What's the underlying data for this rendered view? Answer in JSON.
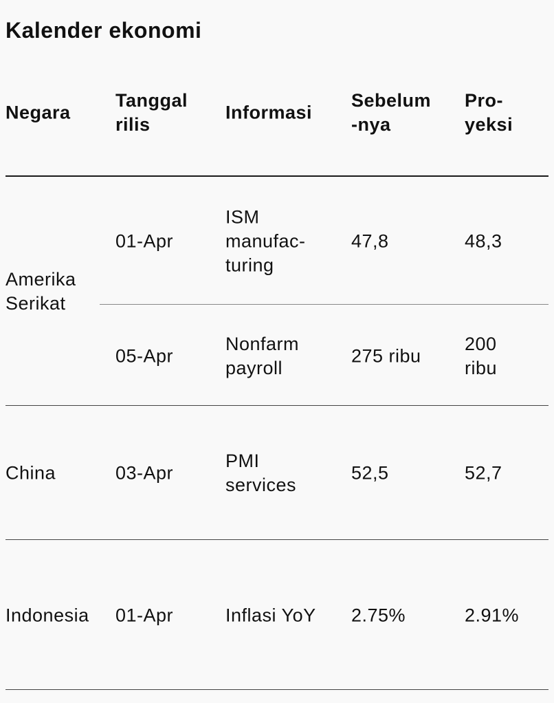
{
  "title": "Kalender ekonomi",
  "headers": {
    "negara": [
      "Negara"
    ],
    "tanggal": [
      "Tanggal",
      "rilis"
    ],
    "informasi": [
      "Informasi"
    ],
    "sebelum": [
      "Sebelum",
      "-nya"
    ],
    "proyeksi": [
      "Pro-",
      "yeksi"
    ]
  },
  "rows": [
    {
      "negara": [
        "Amerika",
        "Serikat"
      ],
      "entries": [
        {
          "tanggal": "01-Apr",
          "informasi": [
            "ISM",
            "manufac-",
            "turing"
          ],
          "sebelum": [
            "47,8"
          ],
          "proyeksi": [
            "48,3"
          ]
        },
        {
          "tanggal": "05-Apr",
          "informasi": [
            "Nonfarm",
            "payroll"
          ],
          "sebelum": [
            "275 ribu"
          ],
          "proyeksi": [
            "200",
            "ribu"
          ]
        }
      ]
    },
    {
      "negara": [
        "China"
      ],
      "entries": [
        {
          "tanggal": "03-Apr",
          "informasi": [
            "PMI",
            "services"
          ],
          "sebelum": [
            "52,5"
          ],
          "proyeksi": [
            "52,7"
          ]
        }
      ]
    },
    {
      "negara": [
        "Indonesia"
      ],
      "entries": [
        {
          "tanggal": "01-Apr",
          "informasi": [
            "Inflasi YoY"
          ],
          "sebelum": [
            "2.75%"
          ],
          "proyeksi": [
            "2.91%"
          ]
        }
      ]
    }
  ]
}
